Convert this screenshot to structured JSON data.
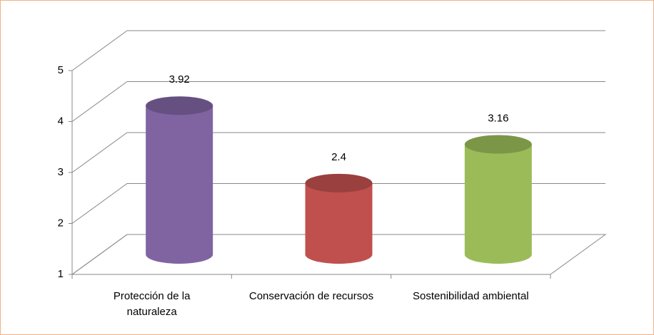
{
  "chart_data": {
    "type": "bar3d",
    "categories": [
      "Protección de la naturaleza",
      "Conservación de recursos",
      "Sostenibilidad ambiental"
    ],
    "values": [
      3.92,
      2.4,
      3.16
    ],
    "colors": [
      "#8064a2",
      "#c0504d",
      "#9bbb59"
    ],
    "ylim": [
      1,
      5
    ],
    "yticks": [
      1,
      2,
      3,
      4,
      5
    ],
    "grid": true
  }
}
